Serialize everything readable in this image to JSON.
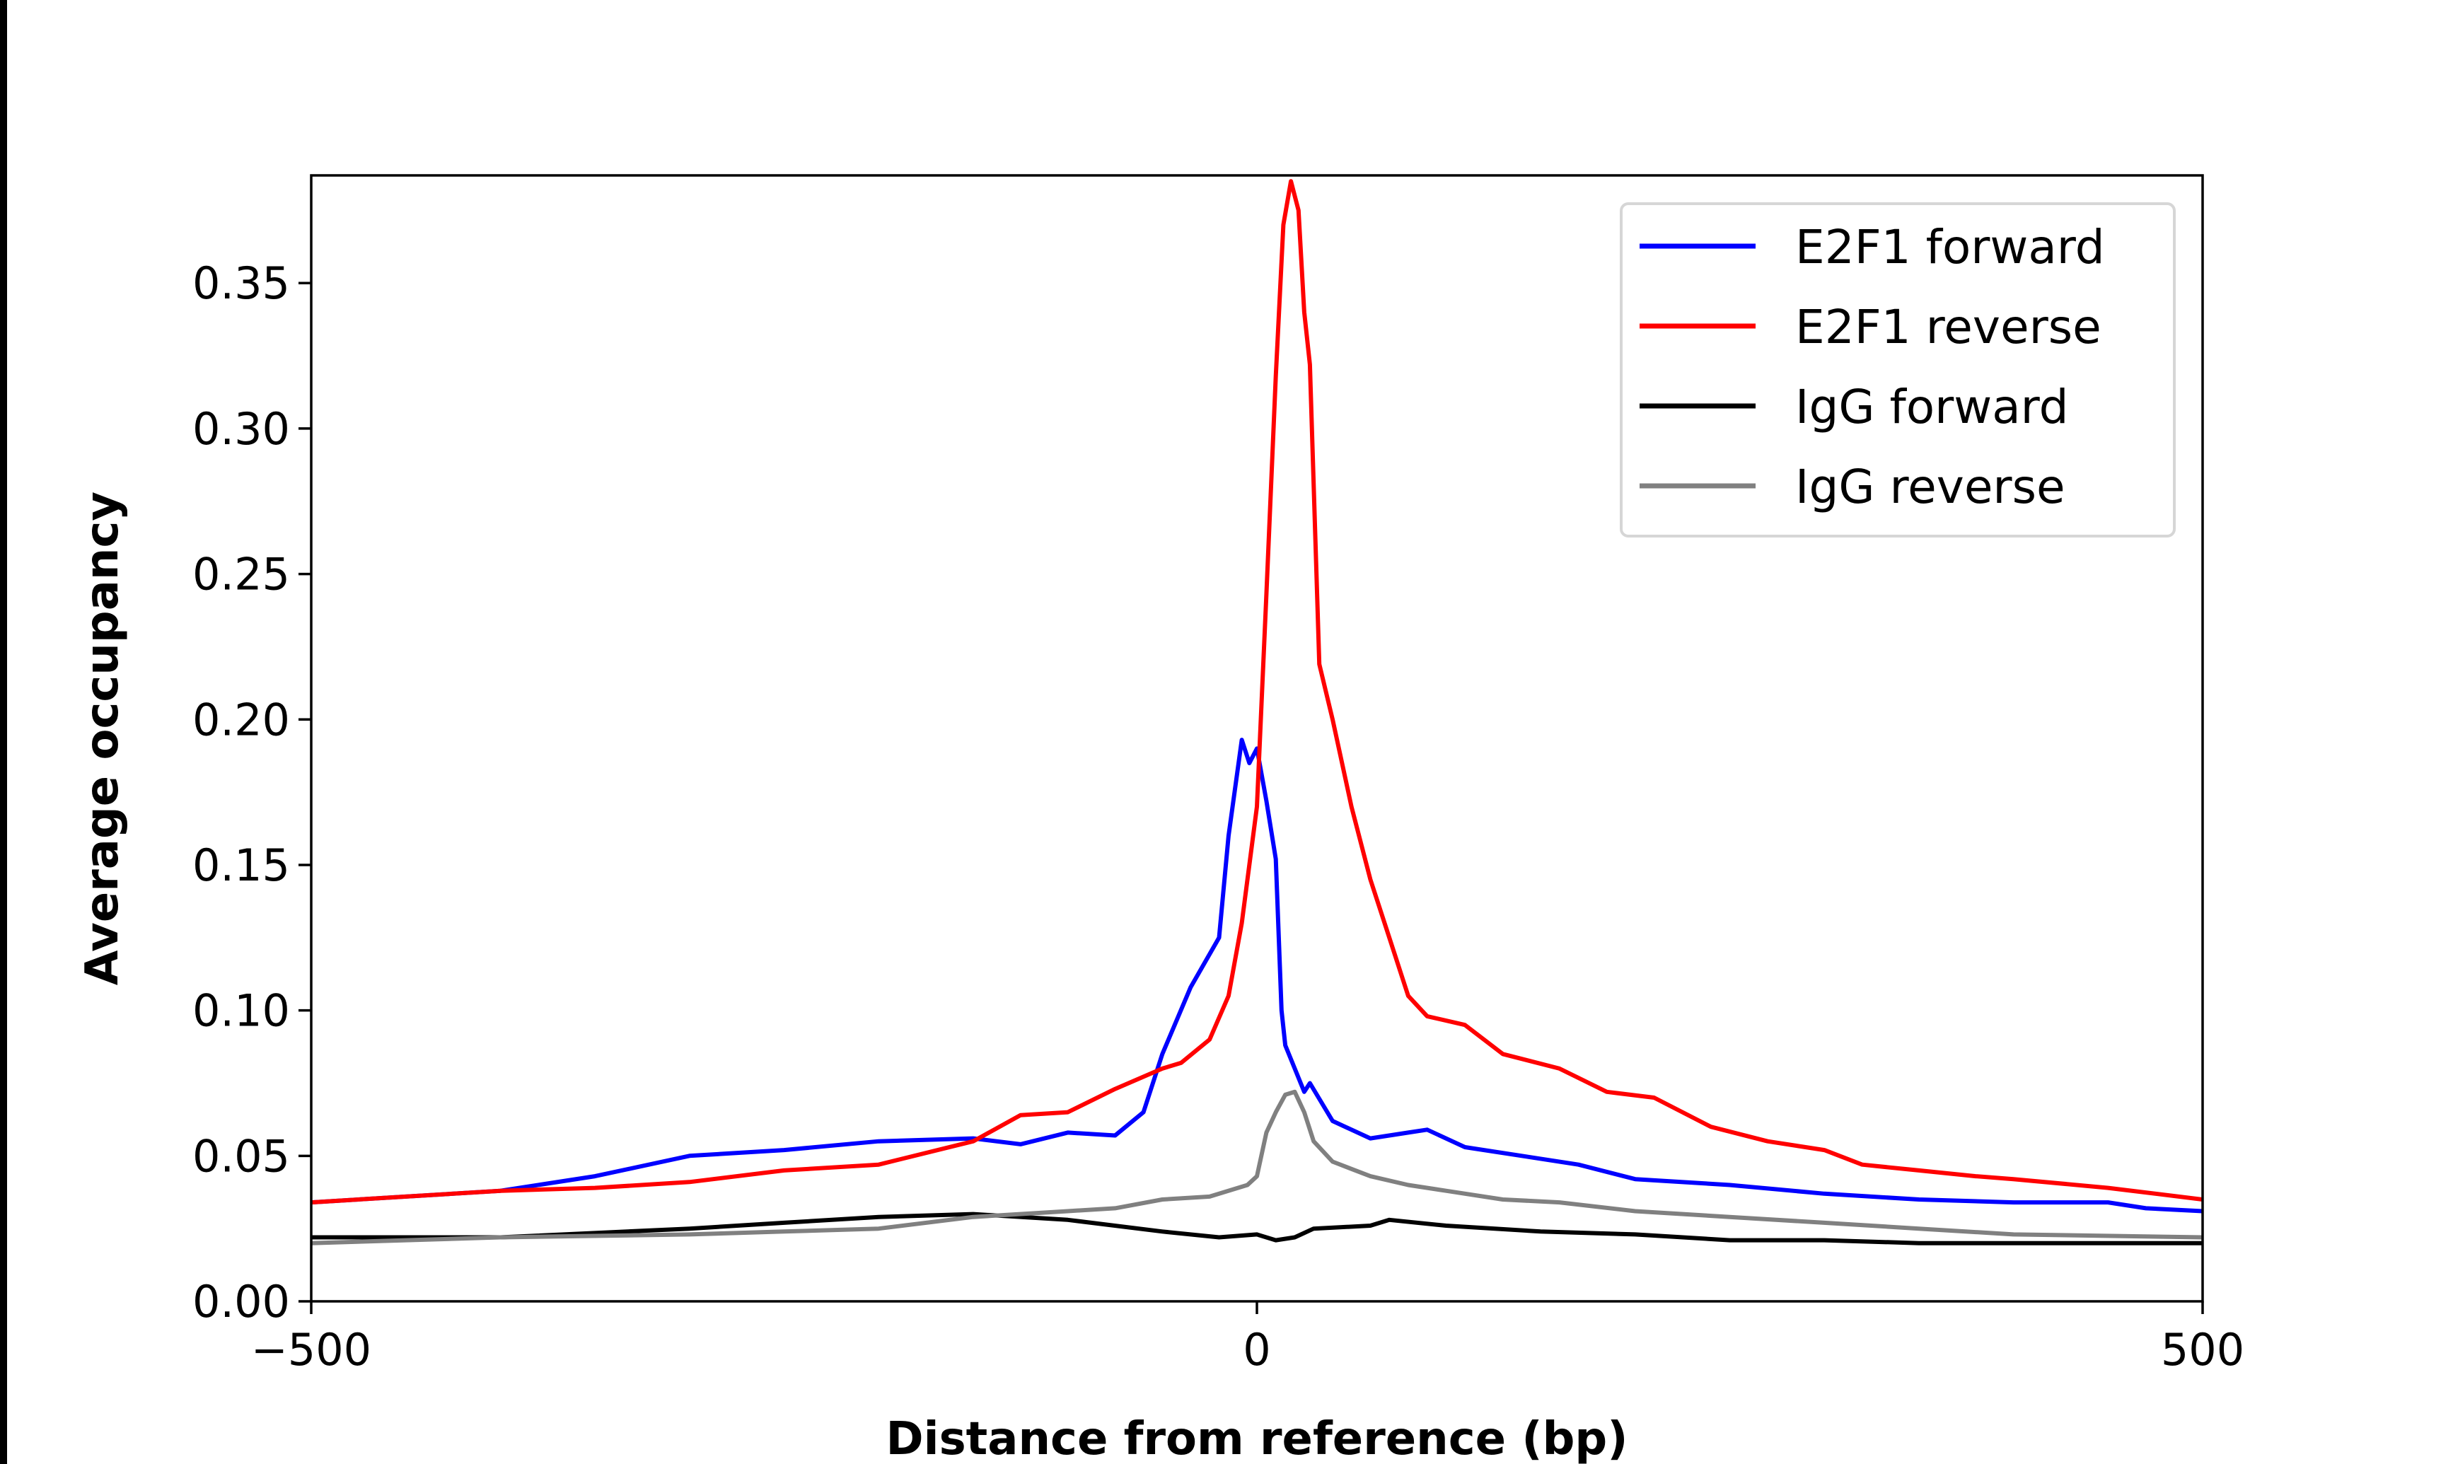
{
  "chart_data": {
    "type": "line",
    "title": "",
    "xlabel": "Distance from reference (bp)",
    "ylabel": "Average occupancy",
    "xlim": [
      -500,
      500
    ],
    "ylim": [
      0,
      0.387
    ],
    "xticks": [
      -500,
      0,
      500
    ],
    "xtick_labels": [
      "−500",
      "0",
      "500"
    ],
    "yticks": [
      0,
      0.05,
      0.1,
      0.15,
      0.2,
      0.25,
      0.3,
      0.35
    ],
    "ytick_labels": [
      "0.00",
      "0.05",
      "0.10",
      "0.15",
      "0.20",
      "0.25",
      "0.30",
      "0.35"
    ],
    "grid": false,
    "legend_position": "top-right",
    "series": [
      {
        "name": "E2F1 forward",
        "color": "#0000ff",
        "x": [
          -500,
          -450,
          -400,
          -350,
          -300,
          -250,
          -200,
          -150,
          -125,
          -100,
          -75,
          -60,
          -50,
          -35,
          -20,
          -15,
          -8,
          -4,
          0,
          5,
          10,
          13,
          15,
          20,
          25,
          28,
          40,
          60,
          80,
          90,
          110,
          140,
          170,
          200,
          250,
          300,
          350,
          400,
          450,
          470,
          500
        ],
        "y": [
          0.034,
          0.036,
          0.038,
          0.043,
          0.05,
          0.052,
          0.055,
          0.056,
          0.054,
          0.058,
          0.057,
          0.065,
          0.085,
          0.108,
          0.125,
          0.16,
          0.193,
          0.185,
          0.19,
          0.172,
          0.152,
          0.1,
          0.088,
          0.08,
          0.072,
          0.075,
          0.062,
          0.056,
          0.058,
          0.059,
          0.053,
          0.05,
          0.047,
          0.042,
          0.04,
          0.037,
          0.035,
          0.034,
          0.034,
          0.032,
          0.031
        ]
      },
      {
        "name": "E2F1 reverse",
        "color": "#ff0000",
        "x": [
          -500,
          -450,
          -400,
          -350,
          -300,
          -250,
          -200,
          -150,
          -125,
          -100,
          -75,
          -50,
          -40,
          -25,
          -15,
          -8,
          0,
          5,
          10,
          14,
          18,
          22,
          25,
          28,
          33,
          40,
          50,
          60,
          70,
          80,
          90,
          110,
          130,
          160,
          185,
          210,
          240,
          270,
          300,
          320,
          350,
          380,
          400,
          450,
          500
        ],
        "y": [
          0.034,
          0.036,
          0.038,
          0.039,
          0.041,
          0.045,
          0.047,
          0.055,
          0.064,
          0.065,
          0.073,
          0.08,
          0.082,
          0.09,
          0.105,
          0.13,
          0.17,
          0.243,
          0.318,
          0.37,
          0.385,
          0.375,
          0.34,
          0.322,
          0.219,
          0.2,
          0.17,
          0.145,
          0.125,
          0.105,
          0.098,
          0.095,
          0.085,
          0.08,
          0.072,
          0.07,
          0.06,
          0.055,
          0.052,
          0.047,
          0.045,
          0.043,
          0.042,
          0.039,
          0.035
        ]
      },
      {
        "name": "IgG forward",
        "color": "#000000",
        "x": [
          -500,
          -400,
          -300,
          -250,
          -200,
          -150,
          -100,
          -50,
          -20,
          0,
          10,
          20,
          30,
          60,
          70,
          100,
          150,
          200,
          250,
          300,
          350,
          400,
          500
        ],
        "y": [
          0.022,
          0.022,
          0.025,
          0.027,
          0.029,
          0.03,
          0.028,
          0.024,
          0.022,
          0.023,
          0.021,
          0.022,
          0.025,
          0.026,
          0.028,
          0.026,
          0.024,
          0.023,
          0.021,
          0.021,
          0.02,
          0.02,
          0.02
        ]
      },
      {
        "name": "IgG reverse",
        "color": "#808080",
        "x": [
          -500,
          -400,
          -300,
          -250,
          -200,
          -150,
          -100,
          -75,
          -50,
          -25,
          -5,
          0,
          5,
          10,
          15,
          20,
          25,
          30,
          40,
          60,
          80,
          100,
          130,
          160,
          200,
          250,
          300,
          350,
          400,
          500
        ],
        "y": [
          0.02,
          0.022,
          0.023,
          0.024,
          0.025,
          0.029,
          0.031,
          0.032,
          0.035,
          0.036,
          0.04,
          0.043,
          0.058,
          0.065,
          0.071,
          0.072,
          0.065,
          0.055,
          0.048,
          0.043,
          0.04,
          0.038,
          0.035,
          0.034,
          0.031,
          0.029,
          0.027,
          0.025,
          0.023,
          0.022
        ]
      }
    ]
  }
}
